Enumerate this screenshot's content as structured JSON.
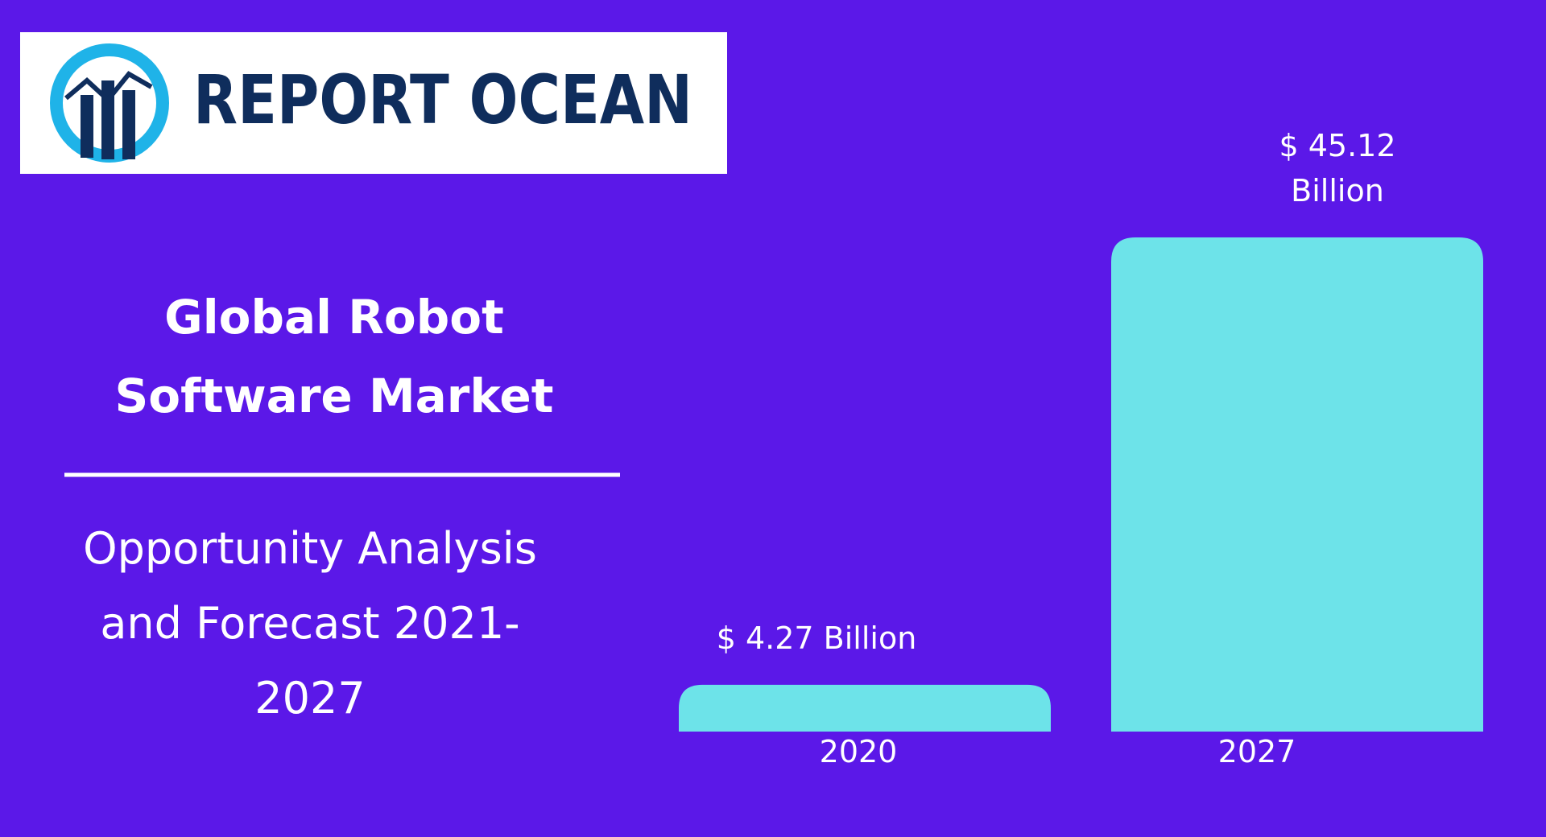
{
  "logo": {
    "text": "REPORT OCEAN"
  },
  "chart_data": {
    "type": "bar",
    "title": "Global Robot Software Market",
    "subtitle": "Opportunity Analysis and Forecast 2021-2027",
    "categories": [
      "2020",
      "2027"
    ],
    "values": [
      4.27,
      45.12
    ],
    "value_labels": [
      "$ 4.27 Billion",
      "$ 45.12 Billion"
    ],
    "color": "#6de3e9"
  }
}
